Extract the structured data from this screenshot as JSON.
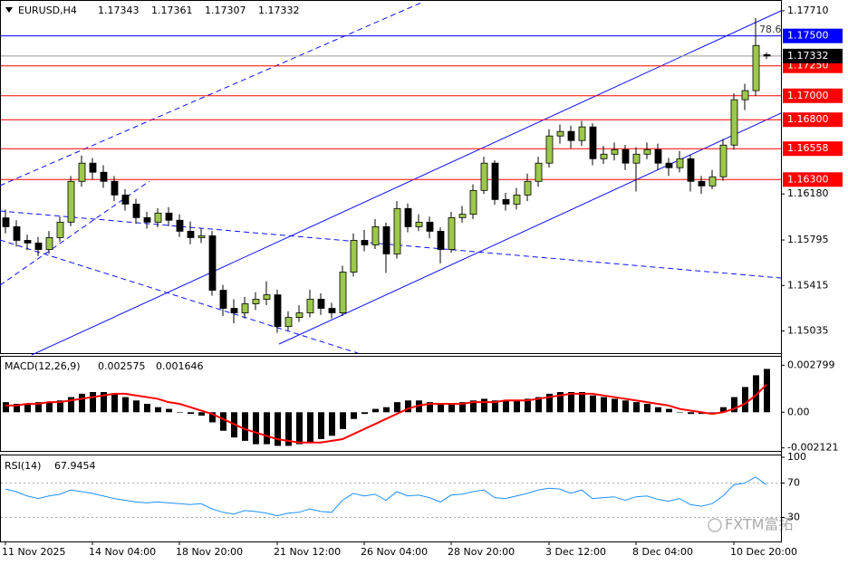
{
  "chart_data": [
    {
      "type": "candlestick",
      "symbol": "EURUSD,H4",
      "categories": [
        "11 Nov 2025",
        null,
        null,
        null,
        null,
        null,
        null,
        null,
        "14 Nov 04:00",
        null,
        null,
        null,
        null,
        null,
        null,
        null,
        "18 Nov 20:00",
        null,
        null,
        null,
        null,
        null,
        null,
        null,
        null,
        "21 Nov 12:00",
        null,
        null,
        null,
        null,
        null,
        null,
        null,
        "26 Nov 04:00",
        null,
        null,
        null,
        null,
        null,
        null,
        null,
        "28 Nov 20:00",
        null,
        null,
        null,
        null,
        null,
        null,
        null,
        null,
        "3 Dec 12:00",
        null,
        null,
        null,
        null,
        null,
        null,
        null,
        "8 Dec 04:00",
        null,
        null,
        null,
        null,
        null,
        null,
        null,
        null,
        "10 Dec 20:00",
        null,
        null,
        null
      ],
      "open": [
        1.1598,
        1.15906,
        1.15792,
        1.1577,
        1.15716,
        1.15815,
        1.15944,
        1.16285,
        1.16437,
        1.16361,
        1.16285,
        1.16171,
        1.16095,
        1.15982,
        1.15944,
        1.1602,
        1.1596,
        1.15868,
        1.15815,
        1.1583,
        1.15375,
        1.15224,
        1.15186,
        1.15262,
        1.153,
        1.15337,
        1.15072,
        1.15148,
        1.15186,
        1.153,
        1.15224,
        1.15186,
        1.15527,
        1.15792,
        1.15754,
        1.15906,
        1.15679,
        1.16058,
        1.15906,
        1.15944,
        1.15868,
        1.15716,
        1.15982,
        1.1601,
        1.16209,
        1.16437,
        1.16133,
        1.16095,
        1.16171,
        1.16285,
        1.16437,
        1.16664,
        1.16702,
        1.16626,
        1.1674,
        1.16474,
        1.16512,
        1.1655,
        1.16437,
        1.16512,
        1.1655,
        1.16437,
        1.16399,
        1.16474,
        1.16285,
        1.16247,
        1.16323,
        1.16588,
        1.16967,
        1.17043,
        1.17343
      ],
      "high": [
        1.1605,
        1.1596,
        1.1584,
        1.1582,
        1.1587,
        1.1599,
        1.1633,
        1.165,
        1.1648,
        1.1642,
        1.1633,
        1.1622,
        1.1614,
        1.1603,
        1.1606,
        1.1607,
        1.1601,
        1.1595,
        1.1589,
        1.1587,
        1.1542,
        1.153,
        1.1532,
        1.1536,
        1.1545,
        1.1538,
        1.152,
        1.1525,
        1.1538,
        1.1535,
        1.1527,
        1.1558,
        1.1585,
        1.1588,
        1.1597,
        1.1594,
        1.1612,
        1.161,
        1.1601,
        1.1599,
        1.159,
        1.1603,
        1.1608,
        1.1626,
        1.1649,
        1.1646,
        1.1619,
        1.1623,
        1.1635,
        1.1649,
        1.1672,
        1.1676,
        1.1675,
        1.1679,
        1.1677,
        1.1658,
        1.1661,
        1.1659,
        1.1657,
        1.1661,
        1.166,
        1.1648,
        1.1654,
        1.1651,
        1.1633,
        1.1638,
        1.1664,
        1.1702,
        1.171,
        1.1765,
        1.17361
      ],
      "low": [
        1.1585,
        1.1574,
        1.1571,
        1.1566,
        1.1568,
        1.1578,
        1.1591,
        1.1624,
        1.163,
        1.1623,
        1.1612,
        1.1604,
        1.1593,
        1.1589,
        1.159,
        1.1591,
        1.1582,
        1.1576,
        1.1577,
        1.1533,
        1.1516,
        1.151,
        1.1514,
        1.1521,
        1.1525,
        1.1502,
        1.1504,
        1.1511,
        1.1515,
        1.1517,
        1.1514,
        1.1516,
        1.1549,
        1.157,
        1.1572,
        1.1552,
        1.1564,
        1.1586,
        1.1587,
        1.1581,
        1.156,
        1.1569,
        1.1594,
        1.1597,
        1.1618,
        1.1609,
        1.1604,
        1.1605,
        1.1612,
        1.1624,
        1.164,
        1.166,
        1.1656,
        1.1658,
        1.1642,
        1.1643,
        1.1646,
        1.1638,
        1.162,
        1.1647,
        1.1638,
        1.1633,
        1.1636,
        1.162,
        1.1618,
        1.1622,
        1.1629,
        1.1655,
        1.1688,
        1.17,
        1.17307
      ],
      "close": [
        1.15906,
        1.15792,
        1.1577,
        1.15716,
        1.15815,
        1.15944,
        1.16285,
        1.16437,
        1.16361,
        1.16285,
        1.16171,
        1.16095,
        1.15982,
        1.15944,
        1.1602,
        1.1596,
        1.15868,
        1.15815,
        1.1583,
        1.15375,
        1.15224,
        1.15186,
        1.15262,
        1.153,
        1.15337,
        1.15072,
        1.15148,
        1.15186,
        1.153,
        1.15224,
        1.15186,
        1.15527,
        1.15792,
        1.15754,
        1.15906,
        1.15679,
        1.16058,
        1.15906,
        1.15944,
        1.15868,
        1.15716,
        1.15982,
        1.1601,
        1.16209,
        1.16437,
        1.16133,
        1.16095,
        1.16171,
        1.16285,
        1.16437,
        1.16664,
        1.16702,
        1.16626,
        1.1674,
        1.16474,
        1.16512,
        1.1655,
        1.16437,
        1.16512,
        1.1655,
        1.16437,
        1.16399,
        1.16474,
        1.16285,
        1.16247,
        1.16323,
        1.16588,
        1.16967,
        1.17043,
        1.1742,
        1.17332
      ],
      "up_color": "#9cc84b",
      "down_color": "#000000",
      "ylim": [
        1.1485,
        1.178
      ],
      "yticks": [
        {
          "value": 1.1771,
          "label": "1.17710"
        },
        {
          "value": 1.1618,
          "label": "1.16180"
        },
        1.15795,
        1.15415,
        1.15035
      ],
      "levels": [
        {
          "value": 1.175,
          "label": "1.17500",
          "color": "#0000ff"
        },
        1.1725,
        1.17,
        1.168,
        1.16558,
        1.163
      ],
      "level_labels": [
        "1.17500",
        "1.17250",
        "1.17000",
        "1.16800",
        "1.16558",
        "1.16300"
      ],
      "level_colors": [
        "#0000ff",
        "#ff0000",
        "#ff0000",
        "#ff0000",
        "#ff0000",
        "#ff0000"
      ],
      "fib_label": "78.6"
    },
    {
      "type": "macd",
      "title": "MACD(12,26,9)",
      "histogram": [
        0.0006,
        0.0005,
        0.0005,
        0.0006,
        0.0006,
        0.0007,
        0.0009,
        0.0011,
        0.0012,
        0.0012,
        0.0011,
        0.0009,
        0.0007,
        0.0005,
        0.0003,
        0.0002,
        0,
        -0.0001,
        -0.0002,
        -0.0006,
        -0.0011,
        -0.0015,
        -0.0017,
        -0.0019,
        -0.0019,
        -0.002,
        -0.002,
        -0.0019,
        -0.0018,
        -0.0016,
        -0.0014,
        -0.001,
        -0.0004,
        -0.0001,
        0.0002,
        0.0003,
        0.0006,
        0.0007,
        0.0007,
        0.0006,
        0.0005,
        0.0005,
        0.0006,
        0.0007,
        0.0008,
        0.0007,
        0.0007,
        0.0007,
        0.0008,
        0.0009,
        0.0011,
        0.0012,
        0.0012,
        0.0012,
        0.001,
        0.0009,
        0.0008,
        0.0007,
        0.0006,
        0.0005,
        0.0003,
        0.0002,
        0,
        -0.0001,
        -0.0001,
        0,
        0.0003,
        0.0009,
        0.0015,
        0.0022,
        0.002575
      ],
      "signal": [
        0.0004,
        0.0004,
        0.0005,
        0.0005,
        0.0006,
        0.0006,
        0.0007,
        0.0008,
        0.0009,
        0.001,
        0.0011,
        0.0011,
        0.001,
        0.0009,
        0.0008,
        0.0006,
        0.0005,
        0.0003,
        0.0001,
        -0.0001,
        -0.0004,
        -0.0007,
        -0.001,
        -0.0012,
        -0.0014,
        -0.0016,
        -0.0017,
        -0.0018,
        -0.0018,
        -0.0018,
        -0.0017,
        -0.0016,
        -0.0013,
        -0.001,
        -0.0007,
        -0.0004,
        -0.0001,
        0.0002,
        0.0004,
        0.0005,
        0.0005,
        0.0005,
        0.0005,
        0.0006,
        0.0006,
        0.0006,
        0.0007,
        0.0007,
        0.0007,
        0.0008,
        0.0009,
        0.001,
        0.0011,
        0.0011,
        0.0011,
        0.001,
        0.0009,
        0.0008,
        0.0007,
        0.0006,
        0.0005,
        0.0004,
        0.0002,
        0.0001,
        0,
        -0.0001,
        0,
        0.0002,
        0.0005,
        0.001,
        0.001646
      ],
      "hist_color": "#000000",
      "signal_color": "#ff0000",
      "ylim": [
        -0.0023,
        0.0033
      ],
      "yticks": [
        0.002799,
        {
          "value": 0,
          "label": "0.00"
        },
        -0.002121
      ]
    },
    {
      "type": "line",
      "title": "RSI(14)",
      "values": [
        63,
        60,
        55,
        52,
        55,
        57,
        62,
        60,
        58,
        55,
        52,
        50,
        48,
        47,
        48,
        47,
        46,
        45,
        46,
        40,
        36,
        34,
        38,
        37,
        35,
        32,
        35,
        36,
        40,
        37,
        36,
        50,
        58,
        55,
        57,
        50,
        60,
        55,
        56,
        53,
        48,
        56,
        57,
        60,
        62,
        53,
        52,
        55,
        58,
        62,
        64,
        63,
        58,
        62,
        52,
        53,
        54,
        50,
        54,
        55,
        51,
        49,
        52,
        45,
        43,
        46,
        55,
        68,
        70,
        77,
        67.9454
      ],
      "color": "#1e90ff",
      "ylim": [
        0,
        100
      ],
      "yticks": [
        30,
        70,
        100
      ],
      "grid": true
    }
  ],
  "watermark": "FXTM富拓"
}
